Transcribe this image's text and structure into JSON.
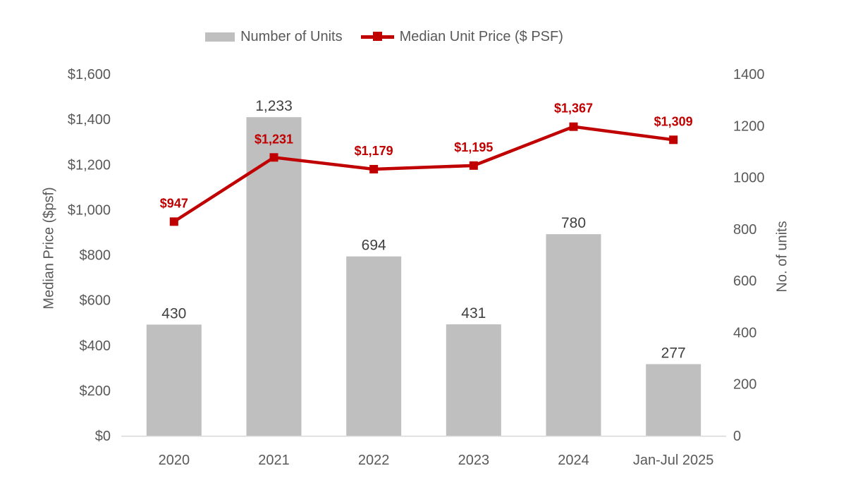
{
  "chart_data": {
    "type": "combo",
    "title": "",
    "categories": [
      "2020",
      "2021",
      "2022",
      "2023",
      "2024",
      "Jan-Jul 2025"
    ],
    "series": [
      {
        "name": "Number of Units",
        "type": "bar",
        "axis": "right",
        "color": "#BFBFBF",
        "values": [
          430,
          1233,
          694,
          431,
          780,
          277
        ],
        "value_labels": [
          "430",
          "1,233",
          "694",
          "431",
          "780",
          "277"
        ]
      },
      {
        "name": "Median Unit Price ($ PSF)",
        "type": "line",
        "axis": "left",
        "color": "#C00000",
        "marker": "square",
        "values": [
          947,
          1231,
          1179,
          1195,
          1367,
          1309
        ],
        "value_labels": [
          "$947",
          "$1,231",
          "$1,179",
          "$1,195",
          "$1,367",
          "$1,309"
        ]
      }
    ],
    "left_axis": {
      "title": "Median Price ($psf)",
      "min": 0,
      "max": 1600,
      "step": 200,
      "tick_labels": [
        "$0",
        "$200",
        "$400",
        "$600",
        "$800",
        "$1,000",
        "$1,200",
        "$1,400",
        "$1,600"
      ]
    },
    "right_axis": {
      "title": "No. of units",
      "min": 0,
      "max": 1400,
      "step": 200,
      "tick_labels": [
        "0",
        "200",
        "400",
        "600",
        "800",
        "1000",
        "1200",
        "1400"
      ]
    },
    "legend_position": "top",
    "grid": false,
    "axis_line_color": "#D9D9D9",
    "tick_text_color": "#595959",
    "bar_label_color": "#404040"
  }
}
